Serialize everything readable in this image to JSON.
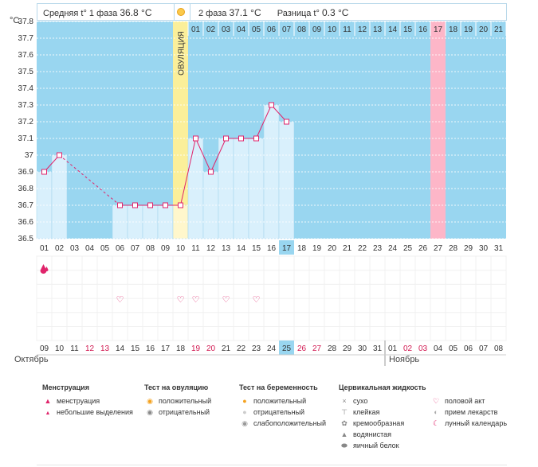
{
  "header": {
    "phase1_label": "Средняя t° 1 фаза",
    "phase1_value": "36.8 °C",
    "phase2_label": "2 фаза",
    "phase2_value": "37.1 °C",
    "diff_label": "Разница t°",
    "diff_value": "0.3 °C"
  },
  "chart_data": {
    "type": "line",
    "yunit": "°C",
    "ylim": [
      36.5,
      37.8
    ],
    "yticks": [
      "36.5",
      "36.6",
      "36.7",
      "36.8",
      "36.9",
      "37",
      "37.1",
      "37.2",
      "37.3",
      "37.4",
      "37.5",
      "37.6",
      "37.7",
      "37.8"
    ],
    "ovulation_label": "ОВУЛЯЦИЯ",
    "ovulation_day": 10,
    "top_day_labels": [
      "01",
      "02",
      "03",
      "04",
      "05",
      "06",
      "07",
      "08",
      "09",
      "10",
      "11",
      "12",
      "13",
      "14",
      "15",
      "16",
      "17",
      "18",
      "19",
      "20",
      "21",
      "22",
      "23",
      "24",
      "25",
      "26",
      "27",
      "28",
      "29",
      "30",
      "31"
    ],
    "bottom_cycle_labels": [
      "01",
      "02",
      "03",
      "04",
      "05",
      "06",
      "07",
      "08",
      "09",
      "10",
      "11",
      "12",
      "13",
      "14",
      "15",
      "16",
      "17",
      "18",
      "19",
      "20",
      "21",
      "22",
      "23",
      "24",
      "25",
      "26",
      "27",
      "28",
      "29",
      "30",
      "31"
    ],
    "top_phase2_labels": [
      "01",
      "02",
      "03",
      "04",
      "05",
      "06",
      "07",
      "08",
      "09",
      "10",
      "11",
      "12",
      "13",
      "14",
      "15",
      "16",
      "17",
      "18",
      "19",
      "20",
      "21"
    ],
    "highlight_phase2_day": 17,
    "highlight_cycle_day": 17,
    "temps": [
      36.9,
      37.0,
      null,
      null,
      null,
      36.7,
      36.7,
      36.7,
      36.7,
      36.7,
      37.1,
      36.9,
      37.1,
      37.1,
      37.1,
      37.3,
      37.2,
      null,
      null,
      null,
      null,
      null,
      null,
      null,
      null,
      null,
      null,
      null,
      null,
      null,
      null
    ],
    "dashed_segments": [
      [
        2,
        6
      ]
    ],
    "calendar_dates": [
      "09",
      "10",
      "11",
      "12",
      "13",
      "14",
      "15",
      "16",
      "17",
      "18",
      "19",
      "20",
      "21",
      "22",
      "23",
      "24",
      "25",
      "26",
      "27",
      "28",
      "29",
      "30",
      "31",
      "01",
      "02",
      "03",
      "04",
      "05",
      "06",
      "07",
      "08"
    ],
    "red_dates_idx": [
      3,
      4,
      10,
      11,
      17,
      18,
      24,
      25
    ],
    "highlight_date_idx": 16,
    "month_start": "Октябрь",
    "month_next": "Ноябрь",
    "month_next_idx": 23,
    "menstruation_days": [
      1
    ],
    "intercourse_days": [
      6,
      10,
      11,
      13,
      15
    ]
  },
  "legend": {
    "menstruation": {
      "title": "Менструация",
      "items": [
        "менструация",
        "небольшие выделения"
      ]
    },
    "ovulation_test": {
      "title": "Тест на овуляцию",
      "items": [
        "положительный",
        "отрицательный"
      ]
    },
    "pregnancy_test": {
      "title": "Тест на беременность",
      "items": [
        "положительный",
        "отрицательный",
        "слабоположительный"
      ]
    },
    "cervical": {
      "title": "Цервикальная жидкость",
      "items": [
        "сухо",
        "клейкая",
        "кремообразная",
        "водянистая",
        "яичный белок"
      ]
    },
    "other": {
      "items": [
        "половой акт",
        "прием лекарств",
        "лунный календарь"
      ]
    }
  },
  "colors": {
    "plot_bg": "#99d6f0",
    "bar_fill": "#d9f0fc",
    "ovulation_fill": "#fbef9a",
    "highlight_fill": "#fdb6c8",
    "line": "#e0246b",
    "red_text": "#d1164f"
  }
}
